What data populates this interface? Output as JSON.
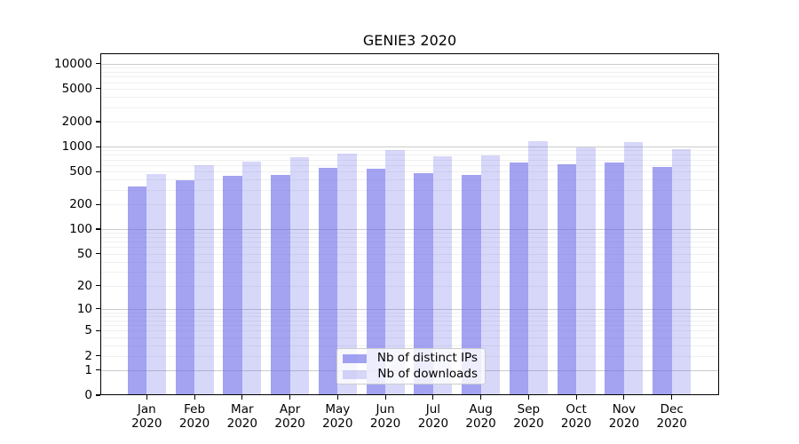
{
  "chart_data": {
    "type": "bar",
    "title": "GENIE3 2020",
    "categories": [
      "Jan",
      "Feb",
      "Mar",
      "Apr",
      "May",
      "Jun",
      "Jul",
      "Aug",
      "Sep",
      "Oct",
      "Nov",
      "Dec"
    ],
    "category_year": "2020",
    "series": [
      {
        "name": "Nb of distinct IPs",
        "color": "rgba(96,96,233,0.58)",
        "values": [
          330,
          390,
          440,
          460,
          560,
          545,
          480,
          460,
          640,
          605,
          645,
          565
        ]
      },
      {
        "name": "Nb of downloads",
        "color": "rgba(96,96,233,0.25)",
        "values": [
          465,
          600,
          655,
          750,
          815,
          905,
          760,
          775,
          1150,
          970,
          1125,
          935
        ]
      }
    ],
    "yscale": "log1p",
    "ylim": [
      0,
      13000
    ],
    "y_tick_values": [
      10000,
      5000,
      2000,
      1000,
      500,
      200,
      100,
      50,
      20,
      10,
      5,
      2,
      1,
      0
    ],
    "y_tick_labels": [
      "10000",
      "5000",
      "2000",
      "1000",
      "500",
      "200",
      "100",
      "50",
      "20",
      "10",
      "5",
      "2",
      "1",
      "0"
    ],
    "grid": {
      "major_values": [
        1,
        10,
        100,
        1000,
        10000
      ],
      "major_color": "#cccccc",
      "minor_color": "#f0f0f0",
      "on": true
    },
    "legend_position": "lower center",
    "xlabel": "",
    "ylabel": ""
  }
}
